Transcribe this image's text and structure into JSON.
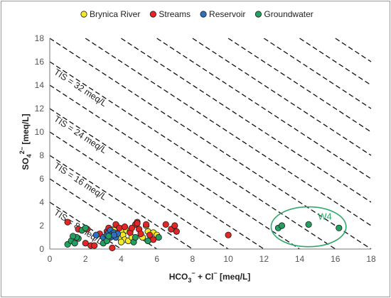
{
  "chart_data": {
    "type": "scatter",
    "title": "",
    "xlabel": "HCO₃⁻ + Cl⁻ [meq/L]",
    "ylabel": "SO₄²⁻ [meq/L]",
    "xlim": [
      0,
      18
    ],
    "ylim": [
      0,
      18
    ],
    "xticks": [
      0,
      2,
      4,
      6,
      8,
      10,
      12,
      14,
      16,
      18
    ],
    "yticks": [
      0,
      2,
      4,
      6,
      8,
      10,
      12,
      14,
      16,
      18
    ],
    "grid": false,
    "legend_position": "top",
    "tis_lines": [
      {
        "total": 4,
        "label": ""
      },
      {
        "total": 6,
        "label": ""
      },
      {
        "total": 8,
        "label": "TIS = 8 meq/L"
      },
      {
        "total": 10,
        "label": ""
      },
      {
        "total": 12,
        "label": ""
      },
      {
        "total": 14,
        "label": ""
      },
      {
        "total": 16,
        "label": "TIS = 16 meq/L"
      },
      {
        "total": 18,
        "label": ""
      },
      {
        "total": 20,
        "label": ""
      },
      {
        "total": 22,
        "label": ""
      },
      {
        "total": 24,
        "label": "TIS = 24 meq/L"
      },
      {
        "total": 26,
        "label": ""
      },
      {
        "total": 28,
        "label": ""
      },
      {
        "total": 30,
        "label": ""
      },
      {
        "total": 32,
        "label": "TIS = 32 meq/L"
      },
      {
        "total": 34,
        "label": ""
      },
      {
        "total": 36,
        "label": ""
      }
    ],
    "annotation": {
      "label": "W4",
      "center": [
        14.5,
        1.9
      ],
      "radius": [
        2.1,
        1.7
      ]
    },
    "series": [
      {
        "name": "Brynica River",
        "color": "#f2ea2a",
        "points": [
          [
            3.6,
            1.7
          ],
          [
            3.8,
            1.8
          ],
          [
            4.0,
            1.5
          ],
          [
            3.7,
            1.2
          ],
          [
            3.9,
            1.0
          ],
          [
            4.1,
            1.2
          ],
          [
            3.5,
            1.5
          ],
          [
            4.2,
            0.8
          ],
          [
            4.4,
            0.7
          ],
          [
            4.0,
            0.6
          ],
          [
            3.6,
            1.6
          ],
          [
            4.3,
            1.6
          ],
          [
            4.5,
            1.5
          ],
          [
            5.2,
            1.0
          ],
          [
            5.4,
            2.0
          ],
          [
            5.5,
            1.5
          ],
          [
            5.8,
            1.4
          ],
          [
            6.0,
            1.2
          ],
          [
            4.6,
            1.0
          ]
        ]
      },
      {
        "name": "Streams",
        "color": "#e32626",
        "points": [
          [
            1.0,
            2.3
          ],
          [
            1.6,
            1.7
          ],
          [
            2.0,
            0.5
          ],
          [
            2.1,
            1.7
          ],
          [
            2.3,
            0.3
          ],
          [
            2.5,
            0.3
          ],
          [
            2.8,
            1.3
          ],
          [
            3.2,
            1.5
          ],
          [
            3.5,
            0.1
          ],
          [
            3.7,
            2.1
          ],
          [
            3.9,
            1.8
          ],
          [
            4.2,
            1.9
          ],
          [
            4.5,
            1.4
          ],
          [
            4.8,
            2.1
          ],
          [
            4.9,
            2.3
          ],
          [
            5.0,
            1.7
          ],
          [
            5.1,
            1.3
          ],
          [
            5.4,
            2.1
          ],
          [
            5.6,
            1.2
          ],
          [
            5.8,
            0.8
          ],
          [
            6.5,
            2.1
          ],
          [
            6.8,
            1.7
          ],
          [
            7.0,
            2.0
          ],
          [
            7.1,
            1.5
          ],
          [
            10.0,
            1.2
          ],
          [
            4.6,
            1.8
          ],
          [
            4.9,
            2.2
          ],
          [
            3.3,
            1.8
          ]
        ]
      },
      {
        "name": "Reservoir",
        "color": "#2e72be",
        "points": [
          [
            2.6,
            1.2
          ],
          [
            3.0,
            1.0
          ],
          [
            3.2,
            1.2
          ],
          [
            3.3,
            1.4
          ],
          [
            3.4,
            1.6
          ],
          [
            3.5,
            1.3
          ],
          [
            3.6,
            1.4
          ],
          [
            3.7,
            1.0
          ],
          [
            3.8,
            1.3
          ],
          [
            3.4,
            1.0
          ],
          [
            3.6,
            1.2
          ]
        ]
      },
      {
        "name": "Groundwater",
        "color": "#22a060",
        "points": [
          [
            1.0,
            0.4
          ],
          [
            1.2,
            0.7
          ],
          [
            1.4,
            0.5
          ],
          [
            1.6,
            0.9
          ],
          [
            1.8,
            1.6
          ],
          [
            2.0,
            1.8
          ],
          [
            3.0,
            0.5
          ],
          [
            3.2,
            0.7
          ],
          [
            3.3,
            1.1
          ],
          [
            4.7,
            0.6
          ],
          [
            4.8,
            1.0
          ],
          [
            5.5,
            0.7
          ],
          [
            6.1,
            1.0
          ],
          [
            12.8,
            1.8
          ],
          [
            13.0,
            2.0
          ],
          [
            14.5,
            2.1
          ],
          [
            16.2,
            1.8
          ],
          [
            1.5,
            1.0
          ],
          [
            1.3,
            1.1
          ]
        ]
      }
    ]
  }
}
